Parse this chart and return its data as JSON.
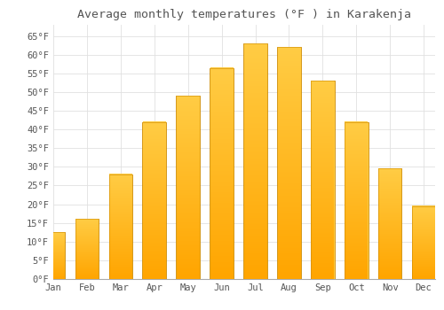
{
  "title": "Average monthly temperatures (°F ) in Karakenja",
  "months": [
    "Jan",
    "Feb",
    "Mar",
    "Apr",
    "May",
    "Jun",
    "Jul",
    "Aug",
    "Sep",
    "Oct",
    "Nov",
    "Dec"
  ],
  "values": [
    12.5,
    16.0,
    28.0,
    42.0,
    49.0,
    56.5,
    63.0,
    62.0,
    53.0,
    42.0,
    29.5,
    19.5
  ],
  "bar_color_top": "#FFCC44",
  "bar_color_bottom": "#FFA500",
  "bar_edge_color": "#CC8800",
  "background_color": "#FFFFFF",
  "grid_color": "#E0E0E0",
  "text_color": "#555555",
  "ylim": [
    0,
    68
  ],
  "yticks": [
    0,
    5,
    10,
    15,
    20,
    25,
    30,
    35,
    40,
    45,
    50,
    55,
    60,
    65
  ],
  "title_fontsize": 9.5,
  "tick_fontsize": 7.5,
  "bar_width": 0.7
}
